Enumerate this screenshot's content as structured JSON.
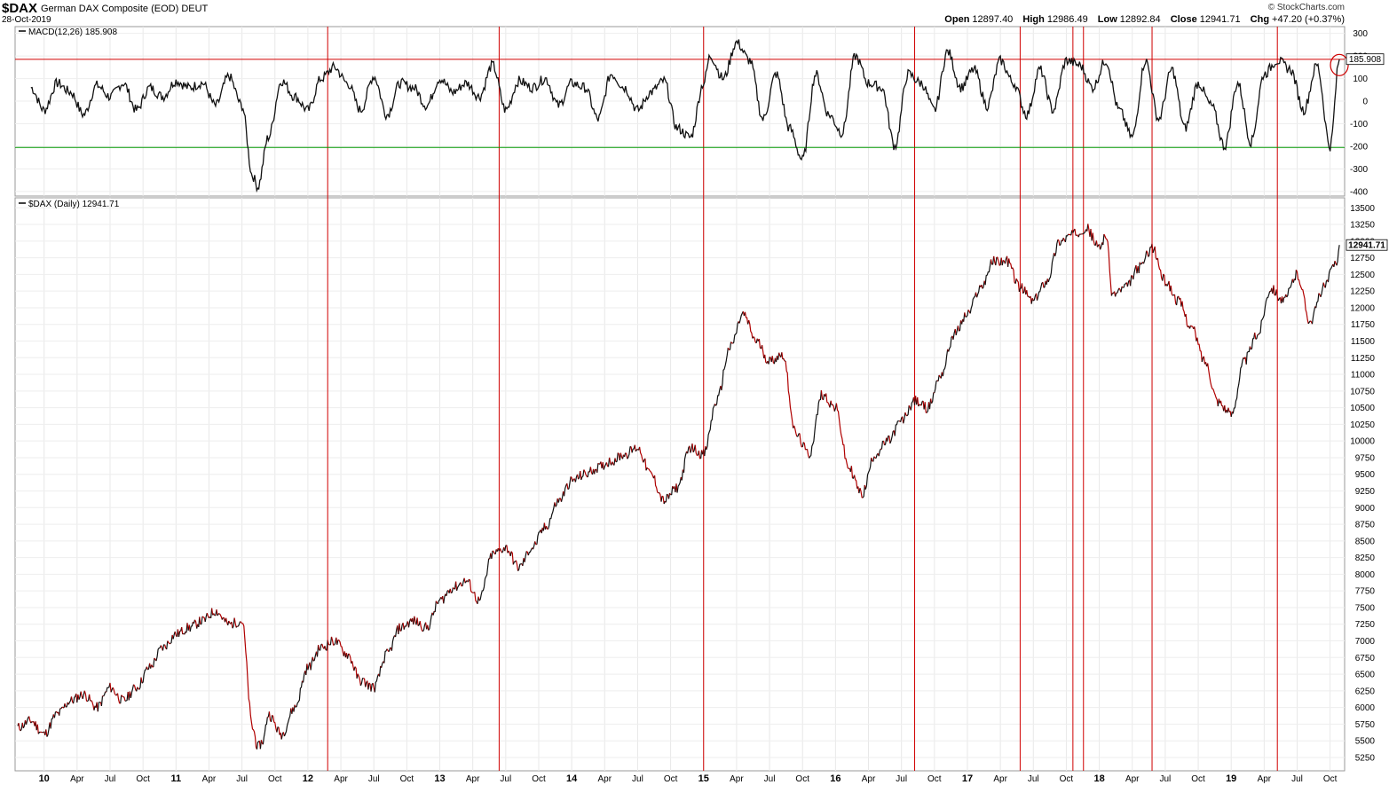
{
  "header": {
    "symbol": "$DAX",
    "description": "German DAX Composite (EOD)  DEUT",
    "date": "28-Oct-2019",
    "brand": "© StockCharts.com",
    "open_label": "Open",
    "open": "12897.40",
    "high_label": "High",
    "high": "12986.49",
    "low_label": "Low",
    "low": "12892.84",
    "close_label": "Close",
    "close": "12941.71",
    "chg_label": "Chg",
    "chg": "+47.20 (+0.37%)"
  },
  "chart_data": [
    {
      "type": "line",
      "label": "MACD(12,26) 185.908",
      "current_value": "185.908",
      "ylim": [
        -420,
        330
      ],
      "yticks": [
        300,
        200,
        100,
        0,
        -100,
        -200,
        -300,
        -400
      ],
      "reference_lines": [
        {
          "value": 185,
          "color": "#d00000"
        },
        {
          "value": -205,
          "color": "#009900"
        }
      ],
      "x": [
        2009.9,
        2010.0,
        2010.1,
        2010.2,
        2010.3,
        2010.4,
        2010.5,
        2010.6,
        2010.7,
        2010.8,
        2010.9,
        2011.0,
        2011.1,
        2011.2,
        2011.3,
        2011.4,
        2011.5,
        2011.58,
        2011.62,
        2011.7,
        2011.8,
        2011.9,
        2012.0,
        2012.1,
        2012.2,
        2012.3,
        2012.4,
        2012.5,
        2012.6,
        2012.7,
        2012.8,
        2012.9,
        2013.0,
        2013.1,
        2013.2,
        2013.3,
        2013.4,
        2013.5,
        2013.6,
        2013.7,
        2013.8,
        2013.9,
        2014.0,
        2014.1,
        2014.2,
        2014.3,
        2014.4,
        2014.5,
        2014.6,
        2014.7,
        2014.8,
        2014.9,
        2015.0,
        2015.05,
        2015.15,
        2015.25,
        2015.35,
        2015.45,
        2015.55,
        2015.65,
        2015.75,
        2015.85,
        2015.95,
        2016.05,
        2016.15,
        2016.25,
        2016.35,
        2016.45,
        2016.55,
        2016.65,
        2016.75,
        2016.85,
        2016.95,
        2017.05,
        2017.15,
        2017.25,
        2017.35,
        2017.45,
        2017.55,
        2017.65,
        2017.75,
        2017.85,
        2017.95,
        2018.05,
        2018.15,
        2018.25,
        2018.35,
        2018.45,
        2018.55,
        2018.65,
        2018.75,
        2018.85,
        2018.95,
        2019.05,
        2019.15,
        2019.25,
        2019.35,
        2019.45,
        2019.55,
        2019.65,
        2019.75,
        2019.82
      ],
      "values": [
        60,
        -40,
        80,
        40,
        -60,
        70,
        20,
        80,
        -40,
        60,
        20,
        90,
        60,
        80,
        -20,
        110,
        -20,
        -330,
        -380,
        -160,
        90,
        20,
        -40,
        100,
        150,
        80,
        -40,
        110,
        -60,
        80,
        60,
        -20,
        100,
        40,
        80,
        20,
        160,
        -40,
        90,
        60,
        100,
        -20,
        80,
        60,
        -80,
        120,
        60,
        -40,
        40,
        90,
        -120,
        -160,
        80,
        200,
        100,
        260,
        180,
        -80,
        120,
        -120,
        -260,
        120,
        -60,
        -140,
        200,
        80,
        60,
        -200,
        120,
        80,
        -40,
        220,
        60,
        140,
        -20,
        180,
        80,
        -60,
        140,
        -40,
        180,
        160,
        60,
        180,
        -40,
        -160,
        180,
        -80,
        140,
        -120,
        80,
        -20,
        -200,
        80,
        -180,
        120,
        180,
        140,
        -40,
        160,
        -200,
        185
      ],
      "markers": [
        "2012.15",
        "2013.45",
        "2015.0",
        "2016.6",
        "2017.4",
        "2017.8",
        "2017.88",
        "2018.4",
        "2019.35"
      ],
      "circle_at": "2019.82"
    },
    {
      "type": "line",
      "label": "$DAX (Daily) 12941.71",
      "current_value": "12941.71",
      "ylim": [
        5050,
        13650
      ],
      "yticks": [
        13500,
        13250,
        13000,
        12750,
        12500,
        12250,
        12000,
        11750,
        11500,
        11250,
        11000,
        10750,
        10500,
        10250,
        10000,
        9750,
        9500,
        9250,
        9000,
        8750,
        8500,
        8250,
        8000,
        7750,
        7500,
        7250,
        7000,
        6750,
        6500,
        6250,
        6000,
        5750,
        5500,
        5250
      ],
      "x": [
        2009.8,
        2009.9,
        2010.0,
        2010.1,
        2010.2,
        2010.3,
        2010.4,
        2010.5,
        2010.6,
        2010.7,
        2010.8,
        2010.9,
        2011.0,
        2011.1,
        2011.2,
        2011.3,
        2011.4,
        2011.5,
        2011.58,
        2011.62,
        2011.66,
        2011.7,
        2011.8,
        2011.9,
        2012.0,
        2012.1,
        2012.2,
        2012.3,
        2012.4,
        2012.5,
        2012.6,
        2012.7,
        2012.8,
        2012.9,
        2013.0,
        2013.1,
        2013.2,
        2013.3,
        2013.4,
        2013.5,
        2013.6,
        2013.7,
        2013.8,
        2013.9,
        2014.0,
        2014.1,
        2014.2,
        2014.3,
        2014.4,
        2014.5,
        2014.6,
        2014.7,
        2014.8,
        2014.9,
        2015.0,
        2015.1,
        2015.2,
        2015.3,
        2015.4,
        2015.5,
        2015.6,
        2015.7,
        2015.8,
        2015.9,
        2016.0,
        2016.1,
        2016.2,
        2016.3,
        2016.4,
        2016.5,
        2016.6,
        2016.7,
        2016.8,
        2016.9,
        2017.0,
        2017.1,
        2017.2,
        2017.3,
        2017.4,
        2017.5,
        2017.6,
        2017.7,
        2017.8,
        2017.9,
        2018.0,
        2018.05,
        2018.1,
        2018.2,
        2018.3,
        2018.4,
        2018.5,
        2018.6,
        2018.7,
        2018.8,
        2018.9,
        2019.0,
        2019.1,
        2019.2,
        2019.3,
        2019.4,
        2019.5,
        2019.6,
        2019.7,
        2019.8,
        2019.82
      ],
      "values": [
        5700,
        5800,
        5600,
        5900,
        6100,
        6200,
        6000,
        6300,
        6100,
        6300,
        6600,
        6900,
        7100,
        7200,
        7300,
        7450,
        7250,
        7300,
        5700,
        5400,
        5500,
        5900,
        5600,
        6000,
        6600,
        6900,
        7000,
        6800,
        6400,
        6300,
        6800,
        7200,
        7300,
        7200,
        7600,
        7800,
        7900,
        7600,
        8300,
        8400,
        8100,
        8400,
        8700,
        9100,
        9400,
        9500,
        9600,
        9700,
        9800,
        9900,
        9500,
        9100,
        9300,
        9900,
        9800,
        10600,
        11400,
        11900,
        11500,
        11200,
        11300,
        10100,
        9800,
        10700,
        10500,
        9600,
        9200,
        9800,
        10000,
        10300,
        10600,
        10500,
        11000,
        11600,
        11900,
        12300,
        12700,
        12700,
        12300,
        12100,
        12400,
        13000,
        13100,
        13200,
        12900,
        13100,
        12200,
        12300,
        12600,
        12900,
        12400,
        12100,
        11700,
        11200,
        10600,
        10400,
        11200,
        11600,
        12300,
        12100,
        12500,
        11800,
        12300,
        12700,
        12941.71
      ],
      "markers": [
        "2012.15",
        "2013.45",
        "2015.0",
        "2016.6",
        "2017.4",
        "2017.8",
        "2017.88",
        "2018.4",
        "2019.35"
      ],
      "x_tick_labels": [
        {
          "x": 2010.0,
          "label": "10",
          "year": true
        },
        {
          "x": 2010.25,
          "label": "Apr"
        },
        {
          "x": 2010.5,
          "label": "Jul"
        },
        {
          "x": 2010.75,
          "label": "Oct"
        },
        {
          "x": 2011.0,
          "label": "11",
          "year": true
        },
        {
          "x": 2011.25,
          "label": "Apr"
        },
        {
          "x": 2011.5,
          "label": "Jul"
        },
        {
          "x": 2011.75,
          "label": "Oct"
        },
        {
          "x": 2012.0,
          "label": "12",
          "year": true
        },
        {
          "x": 2012.25,
          "label": "Apr"
        },
        {
          "x": 2012.5,
          "label": "Jul"
        },
        {
          "x": 2012.75,
          "label": "Oct"
        },
        {
          "x": 2013.0,
          "label": "13",
          "year": true
        },
        {
          "x": 2013.25,
          "label": "Apr"
        },
        {
          "x": 2013.5,
          "label": "Jul"
        },
        {
          "x": 2013.75,
          "label": "Oct"
        },
        {
          "x": 2014.0,
          "label": "14",
          "year": true
        },
        {
          "x": 2014.25,
          "label": "Apr"
        },
        {
          "x": 2014.5,
          "label": "Jul"
        },
        {
          "x": 2014.75,
          "label": "Oct"
        },
        {
          "x": 2015.0,
          "label": "15",
          "year": true
        },
        {
          "x": 2015.25,
          "label": "Apr"
        },
        {
          "x": 2015.5,
          "label": "Jul"
        },
        {
          "x": 2015.75,
          "label": "Oct"
        },
        {
          "x": 2016.0,
          "label": "16",
          "year": true
        },
        {
          "x": 2016.25,
          "label": "Apr"
        },
        {
          "x": 2016.5,
          "label": "Jul"
        },
        {
          "x": 2016.75,
          "label": "Oct"
        },
        {
          "x": 2017.0,
          "label": "17",
          "year": true
        },
        {
          "x": 2017.25,
          "label": "Apr"
        },
        {
          "x": 2017.5,
          "label": "Jul"
        },
        {
          "x": 2017.75,
          "label": "Oct"
        },
        {
          "x": 2018.0,
          "label": "18",
          "year": true
        },
        {
          "x": 2018.25,
          "label": "Apr"
        },
        {
          "x": 2018.5,
          "label": "Jul"
        },
        {
          "x": 2018.75,
          "label": "Oct"
        },
        {
          "x": 2019.0,
          "label": "19",
          "year": true
        },
        {
          "x": 2019.25,
          "label": "Apr"
        },
        {
          "x": 2019.5,
          "label": "Jul"
        },
        {
          "x": 2019.75,
          "label": "Oct"
        }
      ]
    }
  ]
}
